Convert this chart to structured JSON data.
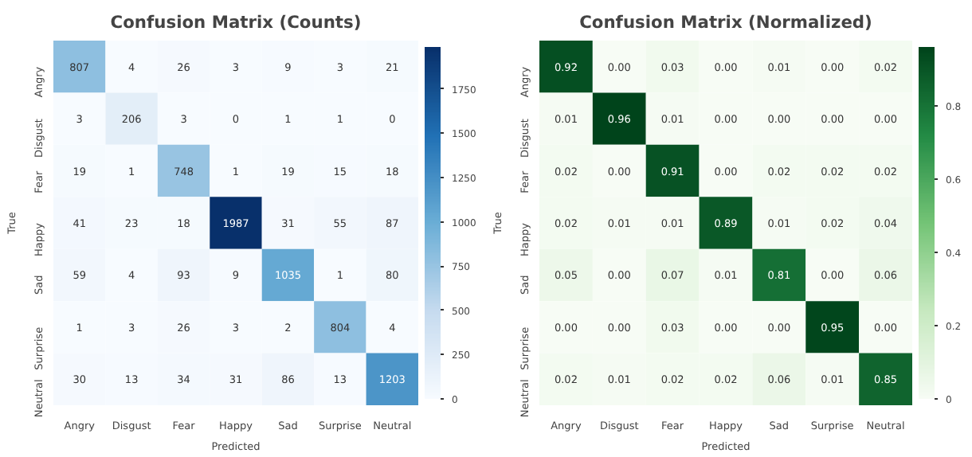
{
  "chart_data": [
    {
      "type": "heatmap",
      "title": "Confusion Matrix (Counts)",
      "xlabel": "Predicted",
      "ylabel": "True",
      "categories": [
        "Angry",
        "Disgust",
        "Fear",
        "Happy",
        "Sad",
        "Surprise",
        "Neutral"
      ],
      "y_categories": [
        "Angry",
        "Disgust",
        "Fear",
        "Happy",
        "Sad",
        "Surprise",
        "Neutral"
      ],
      "cells": [
        [
          807,
          4,
          26,
          3,
          9,
          3,
          21
        ],
        [
          3,
          206,
          3,
          0,
          1,
          1,
          0
        ],
        [
          19,
          1,
          748,
          1,
          19,
          15,
          18
        ],
        [
          41,
          23,
          18,
          1987,
          31,
          55,
          87
        ],
        [
          59,
          4,
          93,
          9,
          1035,
          1,
          80
        ],
        [
          1,
          3,
          26,
          3,
          2,
          804,
          4
        ],
        [
          30,
          13,
          34,
          31,
          86,
          13,
          1203
        ]
      ],
      "data_labels": true,
      "colors": [
        "#f7fbff",
        "#c6dbef",
        "#6baed6",
        "#2171b5",
        "#08306b"
      ],
      "clim": [
        0,
        1987
      ],
      "cticks": [
        0,
        250,
        500,
        750,
        1000,
        1250,
        1500,
        1750
      ]
    },
    {
      "type": "heatmap",
      "title": "Confusion Matrix (Normalized)",
      "xlabel": "Predicted",
      "ylabel": "True",
      "categories": [
        "Angry",
        "Disgust",
        "Fear",
        "Happy",
        "Sad",
        "Surprise",
        "Neutral"
      ],
      "y_categories": [
        "Angry",
        "Disgust",
        "Fear",
        "Happy",
        "Sad",
        "Surprise",
        "Neutral"
      ],
      "cells": [
        [
          0.92,
          0.0,
          0.03,
          0.0,
          0.01,
          0.0,
          0.02
        ],
        [
          0.01,
          0.96,
          0.01,
          0.0,
          0.0,
          0.0,
          0.0
        ],
        [
          0.02,
          0.0,
          0.91,
          0.0,
          0.02,
          0.02,
          0.02
        ],
        [
          0.02,
          0.01,
          0.01,
          0.89,
          0.01,
          0.02,
          0.04
        ],
        [
          0.05,
          0.0,
          0.07,
          0.01,
          0.81,
          0.0,
          0.06
        ],
        [
          0.0,
          0.0,
          0.03,
          0.0,
          0.0,
          0.95,
          0.0
        ],
        [
          0.02,
          0.01,
          0.02,
          0.02,
          0.06,
          0.01,
          0.85
        ]
      ],
      "cell_labels": [
        [
          "0.92",
          "0.00",
          "0.03",
          "0.00",
          "0.01",
          "0.00",
          "0.02"
        ],
        [
          "0.01",
          "0.96",
          "0.01",
          "0.00",
          "0.00",
          "0.00",
          "0.00"
        ],
        [
          "0.02",
          "0.00",
          "0.91",
          "0.00",
          "0.02",
          "0.02",
          "0.02"
        ],
        [
          "0.02",
          "0.01",
          "0.01",
          "0.89",
          "0.01",
          "0.02",
          "0.04"
        ],
        [
          "0.05",
          "0.00",
          "0.07",
          "0.01",
          "0.81",
          "0.00",
          "0.06"
        ],
        [
          "0.00",
          "0.00",
          "0.03",
          "0.00",
          "0.00",
          "0.95",
          "0.00"
        ],
        [
          "0.02",
          "0.01",
          "0.02",
          "0.02",
          "0.06",
          "0.01",
          "0.85"
        ]
      ],
      "colors": [
        "#f7fcf5",
        "#c7e9c0",
        "#74c476",
        "#238b45",
        "#00441b"
      ],
      "clim": [
        0,
        0.96
      ],
      "cticks": [
        0.0,
        0.2,
        0.4,
        0.6,
        0.8
      ]
    }
  ]
}
